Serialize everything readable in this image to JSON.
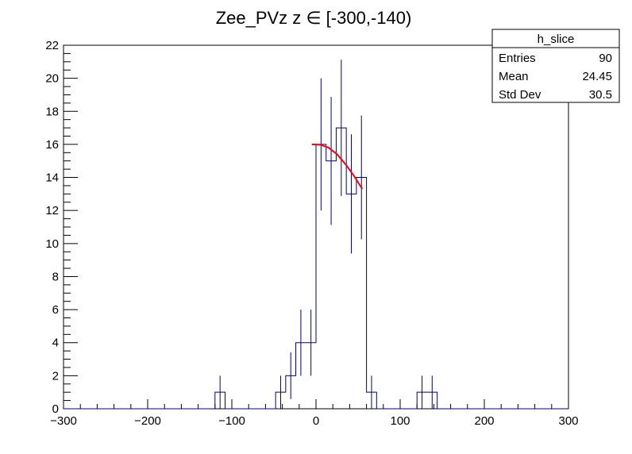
{
  "chart_data": {
    "type": "histogram",
    "title": "Zee_PVz z  ∈ [-300,-140)",
    "xlabel": "",
    "ylabel": "",
    "xlim": [
      -300,
      300
    ],
    "ylim": [
      0,
      22
    ],
    "x_ticks": [
      -300,
      -200,
      -100,
      0,
      100,
      200,
      300
    ],
    "x_tick_labels": [
      "−300",
      "−200",
      "−100",
      "0",
      "100",
      "200",
      "300"
    ],
    "y_ticks": [
      0,
      2,
      4,
      6,
      8,
      10,
      12,
      14,
      16,
      18,
      20,
      22
    ],
    "grid": false,
    "bin_width": 12,
    "bins": [
      {
        "x_low": -120,
        "x_high": -108,
        "count": 1
      },
      {
        "x_low": -48,
        "x_high": -36,
        "count": 1
      },
      {
        "x_low": -36,
        "x_high": -24,
        "count": 2
      },
      {
        "x_low": -24,
        "x_high": -12,
        "count": 4
      },
      {
        "x_low": -12,
        "x_high": 0,
        "count": 4
      },
      {
        "x_low": 0,
        "x_high": 12,
        "count": 16
      },
      {
        "x_low": 12,
        "x_high": 24,
        "count": 15
      },
      {
        "x_low": 24,
        "x_high": 36,
        "count": 17
      },
      {
        "x_low": 36,
        "x_high": 48,
        "count": 13
      },
      {
        "x_low": 48,
        "x_high": 60,
        "count": 14
      },
      {
        "x_low": 60,
        "x_high": 72,
        "count": 1
      },
      {
        "x_low": 120,
        "x_high": 132,
        "count": 1
      },
      {
        "x_low": 132,
        "x_high": 144,
        "count": 1
      }
    ],
    "fit": {
      "color": "#ff0000",
      "points": [
        [
          -5,
          16.0
        ],
        [
          5,
          15.98
        ],
        [
          15,
          15.8
        ],
        [
          25,
          15.4
        ],
        [
          35,
          14.8
        ],
        [
          45,
          14.1
        ],
        [
          55,
          13.3
        ]
      ]
    },
    "stats_box": {
      "name": "h_slice",
      "rows": [
        {
          "label": "Entries",
          "value": "90"
        },
        {
          "label": "Mean",
          "value": "24.45"
        },
        {
          "label": "Std Dev",
          "value": "30.5"
        }
      ]
    },
    "colors": {
      "histogram": "#000080",
      "fit": "#ff0000",
      "axes": "#000000"
    }
  }
}
